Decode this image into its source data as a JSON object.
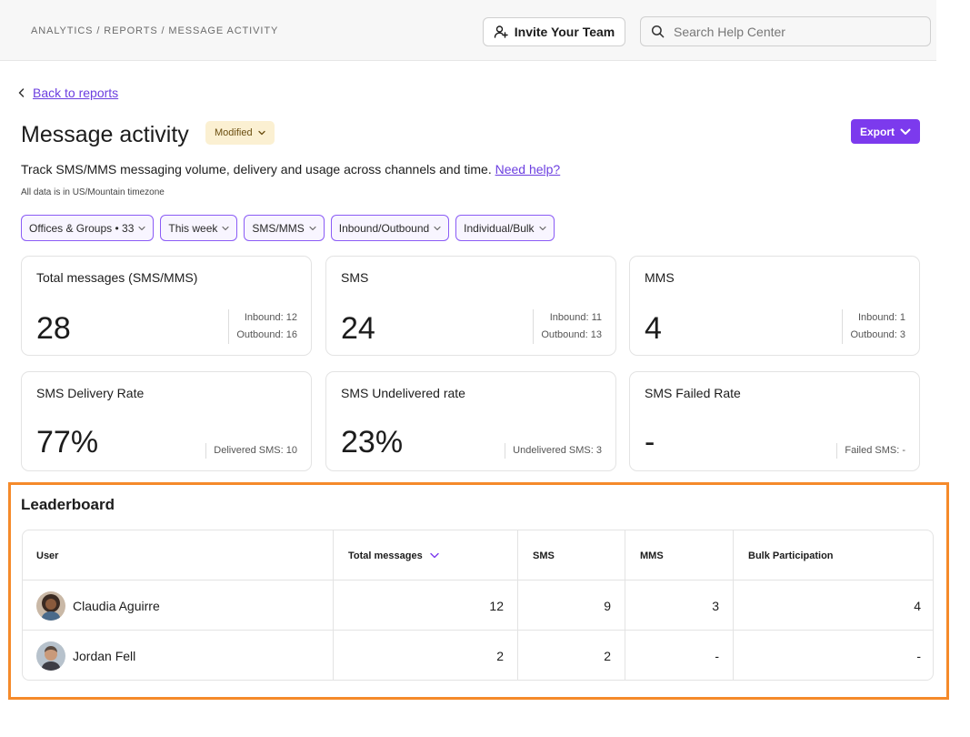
{
  "header": {
    "breadcrumb": "ANALYTICS / REPORTS / MESSAGE ACTIVITY",
    "invite_label": "Invite Your Team",
    "search_placeholder": "Search Help Center"
  },
  "back_link": "Back to reports",
  "page": {
    "title": "Message activity",
    "status_badge": "Modified",
    "export_label": "Export",
    "description": "Track SMS/MMS messaging volume, delivery and usage across channels and time.",
    "help_link": "Need help?",
    "timezone_note": "All data is in US/Mountain timezone"
  },
  "filters": [
    {
      "label": "Offices & Groups • 33"
    },
    {
      "label": "This week"
    },
    {
      "label": "SMS/MMS"
    },
    {
      "label": "Inbound/Outbound"
    },
    {
      "label": "Individual/Bulk"
    }
  ],
  "stats": [
    {
      "title": "Total messages (SMS/MMS)",
      "value": "28",
      "inbound": "Inbound: 12",
      "outbound": "Outbound: 16"
    },
    {
      "title": "SMS",
      "value": "24",
      "inbound": "Inbound: 11",
      "outbound": "Outbound: 13"
    },
    {
      "title": "MMS",
      "value": "4",
      "inbound": "Inbound: 1",
      "outbound": "Outbound: 3"
    }
  ],
  "rates": [
    {
      "title": "SMS Delivery Rate",
      "value": "77%",
      "detail": "Delivered SMS: 10"
    },
    {
      "title": "SMS Undelivered rate",
      "value": "23%",
      "detail": "Undelivered SMS: 3"
    },
    {
      "title": "SMS Failed Rate",
      "value": "-",
      "detail": "Failed SMS: -"
    }
  ],
  "leaderboard": {
    "title": "Leaderboard",
    "columns": [
      "User",
      "Total messages",
      "SMS",
      "MMS",
      "Bulk Participation"
    ],
    "rows": [
      {
        "user": "Claudia Aguirre",
        "total": "12",
        "sms": "9",
        "mms": "3",
        "bulk": "4"
      },
      {
        "user": "Jordan Fell",
        "total": "2",
        "sms": "2",
        "mms": "-",
        "bulk": "-"
      }
    ]
  },
  "colors": {
    "accent": "#7c3aed",
    "link": "#6c3fe0",
    "highlight_frame": "#f58a2a",
    "badge_bg": "#fbf0d2"
  }
}
